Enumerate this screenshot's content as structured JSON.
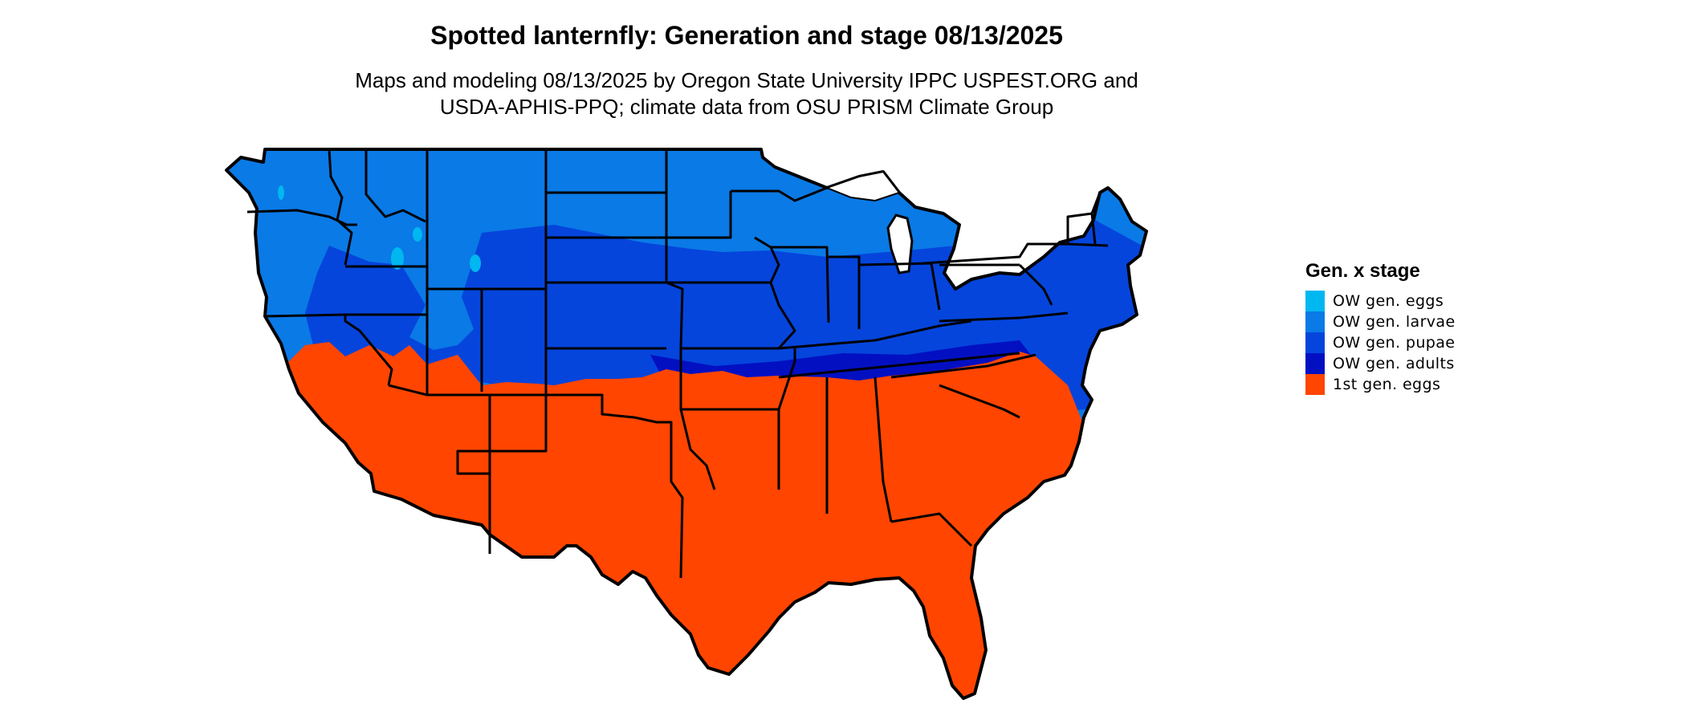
{
  "title": "Spotted lanternfly: Generation and stage 08/13/2025",
  "subtitle_lines": [
    "Maps and modeling 08/13/2025 by Oregon State University IPPC USPEST.ORG and",
    "USDA-APHIS-PPQ; climate data from OSU PRISM Climate Group"
  ],
  "legend": {
    "title": "Gen. x stage",
    "items": [
      {
        "label": "OW gen. eggs",
        "color": "#00b7f0"
      },
      {
        "label": "OW gen. larvae",
        "color": "#0a7ae6"
      },
      {
        "label": "OW gen. pupae",
        "color": "#0545dc"
      },
      {
        "label": "OW gen. adults",
        "color": "#0210c2"
      },
      {
        "label": "1st gen. eggs",
        "color": "#ff4500"
      }
    ]
  },
  "colors": {
    "state_border": "#000000",
    "background": "#ffffff"
  }
}
